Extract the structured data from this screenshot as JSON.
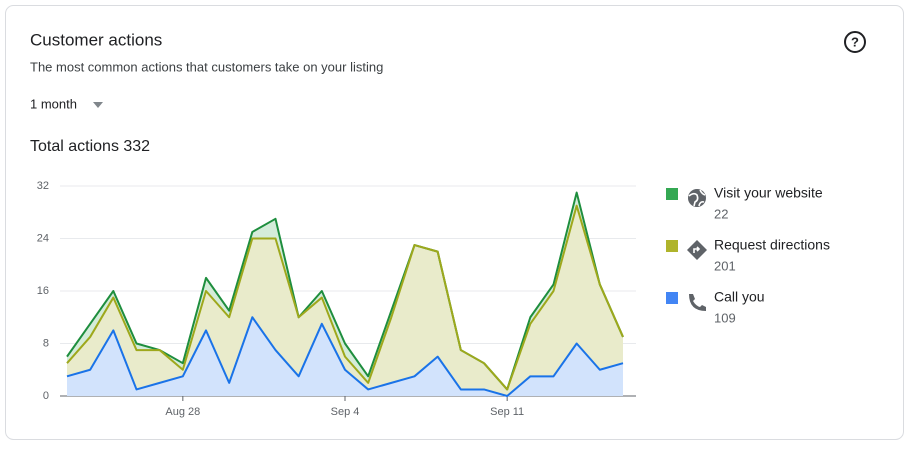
{
  "header": {
    "title": "Customer actions",
    "subtitle": "The most common actions that customers take on your listing",
    "period": "1 month",
    "total_text": "Total actions 332"
  },
  "chart_data": {
    "type": "stacked-area",
    "categories": [
      null,
      null,
      null,
      null,
      null,
      "Aug 28",
      null,
      null,
      null,
      null,
      null,
      null,
      "Sep 4",
      null,
      null,
      null,
      null,
      null,
      null,
      "Sep 11",
      null,
      null,
      null,
      null,
      null
    ],
    "series": [
      {
        "name": "Visit your website",
        "total": 22,
        "color": "#1e8e3e",
        "legend_color": "#34a853",
        "fill": "#d4ecd9",
        "values": [
          1,
          2,
          1,
          1,
          0,
          1,
          2,
          1,
          1,
          3,
          0,
          1,
          2,
          1,
          1,
          0,
          0,
          0,
          0,
          0,
          1,
          1,
          2,
          0,
          0
        ]
      },
      {
        "name": "Request directions",
        "total": 201,
        "color": "#9ea81c",
        "legend_color": "#afb42b",
        "fill": "#e9ebcb",
        "values": [
          2,
          5,
          5,
          6,
          5,
          1,
          6,
          10,
          12,
          17,
          9,
          4,
          2,
          1,
          10,
          20,
          16,
          6,
          4,
          1,
          8,
          13,
          21,
          13,
          4
        ]
      },
      {
        "name": "Call you",
        "total": 109,
        "color": "#1a73e8",
        "legend_color": "#4285f4",
        "fill": "#d2e3fc",
        "values": [
          3,
          4,
          10,
          1,
          2,
          3,
          10,
          2,
          12,
          7,
          3,
          11,
          4,
          1,
          2,
          3,
          6,
          1,
          1,
          0,
          3,
          3,
          8,
          4,
          5
        ]
      }
    ],
    "ylim": [
      0,
      32
    ],
    "yticks": [
      0,
      8,
      16,
      24,
      32
    ],
    "grid": true
  }
}
